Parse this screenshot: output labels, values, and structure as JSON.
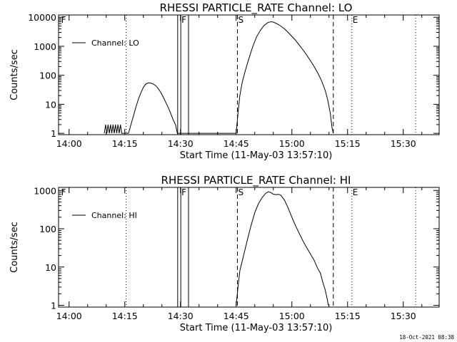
{
  "meta": {
    "timestamp": "18-Oct-2021 08:38"
  },
  "chart_data": [
    {
      "type": "line",
      "title": "RHESSI PARTICLE_RATE Channel: LO",
      "xlabel": "Start Time (11-May-03 13:57:10)",
      "ylabel": "Counts/sec",
      "yscale": "log",
      "ylim": [
        0.9,
        12000
      ],
      "xlim": [
        "13:57:10",
        "15:39:40"
      ],
      "xticks": [
        "14:00",
        "14:15",
        "14:30",
        "14:45",
        "15:00",
        "15:15",
        "15:30"
      ],
      "yticks": [
        "1",
        "10",
        "100",
        "1000",
        "10000"
      ],
      "legend": "top-left",
      "series": [
        {
          "name": "Channel: LO",
          "points": [
            [
              "14:09:30",
              1
            ],
            [
              "14:09:50",
              2
            ],
            [
              "14:10:10",
              1
            ],
            [
              "14:10:30",
              2
            ],
            [
              "14:10:50",
              1
            ],
            [
              "14:11:10",
              2
            ],
            [
              "14:11:30",
              1
            ],
            [
              "14:11:50",
              2
            ],
            [
              "14:12:10",
              1
            ],
            [
              "14:12:30",
              2
            ],
            [
              "14:12:50",
              1
            ],
            [
              "14:13:10",
              2
            ],
            [
              "14:13:30",
              1
            ],
            [
              "14:13:50",
              2
            ],
            [
              "14:14:10",
              1
            ],
            [
              "14:16:00",
              1
            ],
            [
              "14:16:40",
              2
            ],
            [
              "14:17:20",
              4
            ],
            [
              "14:18:00",
              8
            ],
            [
              "14:18:40",
              15
            ],
            [
              "14:19:20",
              25
            ],
            [
              "14:20:00",
              38
            ],
            [
              "14:20:40",
              50
            ],
            [
              "14:21:20",
              55
            ],
            [
              "14:22:00",
              54
            ],
            [
              "14:22:40",
              50
            ],
            [
              "14:23:20",
              44
            ],
            [
              "14:24:00",
              35
            ],
            [
              "14:24:40",
              26
            ],
            [
              "14:25:20",
              18
            ],
            [
              "14:26:00",
              12
            ],
            [
              "14:26:40",
              8
            ],
            [
              "14:27:20",
              5
            ],
            [
              "14:28:00",
              3
            ],
            [
              "14:28:40",
              2
            ],
            [
              "14:29:10",
              1
            ],
            [
              "14:45:00",
              1
            ],
            [
              "14:45:30",
              5
            ],
            [
              "14:46:00",
              20
            ],
            [
              "14:46:40",
              60
            ],
            [
              "14:47:30",
              150
            ],
            [
              "14:48:30",
              400
            ],
            [
              "14:49:30",
              1000
            ],
            [
              "14:50:30",
              2100
            ],
            [
              "14:51:30",
              3500
            ],
            [
              "14:52:30",
              5200
            ],
            [
              "14:53:30",
              6500
            ],
            [
              "14:54:20",
              7000
            ],
            [
              "14:55:00",
              6800
            ],
            [
              "14:56:00",
              6000
            ],
            [
              "14:57:00",
              5000
            ],
            [
              "14:58:00",
              4000
            ],
            [
              "14:59:00",
              3000
            ],
            [
              "15:00:00",
              2200
            ],
            [
              "15:01:00",
              1600
            ],
            [
              "15:02:00",
              1100
            ],
            [
              "15:03:00",
              750
            ],
            [
              "15:04:00",
              500
            ],
            [
              "15:05:00",
              320
            ],
            [
              "15:06:00",
              200
            ],
            [
              "15:07:00",
              120
            ],
            [
              "15:08:00",
              65
            ],
            [
              "15:09:00",
              30
            ],
            [
              "15:09:40",
              14
            ],
            [
              "15:10:20",
              5
            ],
            [
              "15:10:50",
              1.5
            ],
            [
              "15:11:10",
              1
            ]
          ]
        }
      ],
      "markers": [
        {
          "label": "F",
          "time": "13:57:40",
          "style": "none"
        },
        {
          "label": "F",
          "time": "14:30:05",
          "style": "none"
        },
        {
          "label": "S",
          "time": "14:45:20",
          "style": "dashed"
        },
        {
          "label": "E",
          "time": "15:16:10",
          "style": "dotted"
        }
      ],
      "vlines": [
        {
          "time": "14:15:20",
          "style": "dotted"
        },
        {
          "time": "14:29:15",
          "style": "solid"
        },
        {
          "time": "14:30:05",
          "style": "solid"
        },
        {
          "time": "14:32:10",
          "style": "solid"
        },
        {
          "time": "14:45:20",
          "style": "dashed"
        },
        {
          "time": "15:11:10",
          "style": "dashed"
        },
        {
          "time": "15:16:10",
          "style": "dotted"
        },
        {
          "time": "15:33:20",
          "style": "dotted"
        }
      ]
    },
    {
      "type": "line",
      "title": "RHESSI PARTICLE_RATE Channel: HI",
      "xlabel": "Start Time (11-May-03 13:57:10)",
      "ylabel": "Counts/sec",
      "yscale": "log",
      "ylim": [
        0.9,
        1200
      ],
      "xlim": [
        "13:57:10",
        "15:39:40"
      ],
      "xticks": [
        "14:00",
        "14:15",
        "14:30",
        "14:45",
        "15:00",
        "15:15",
        "15:30"
      ],
      "yticks": [
        "1",
        "10",
        "100",
        "1000"
      ],
      "legend": "top-left",
      "series": [
        {
          "name": "Channel: HI",
          "points": [
            [
              "14:45:00",
              1
            ],
            [
              "14:45:30",
              3
            ],
            [
              "14:46:00",
              8
            ],
            [
              "14:47:00",
              20
            ],
            [
              "14:48:00",
              50
            ],
            [
              "14:49:00",
              120
            ],
            [
              "14:50:00",
              260
            ],
            [
              "14:51:00",
              450
            ],
            [
              "14:52:00",
              650
            ],
            [
              "14:53:00",
              850
            ],
            [
              "14:53:40",
              920
            ],
            [
              "14:54:20",
              880
            ],
            [
              "14:55:00",
              800
            ],
            [
              "14:55:40",
              780
            ],
            [
              "14:56:20",
              790
            ],
            [
              "14:57:00",
              760
            ],
            [
              "14:58:00",
              560
            ],
            [
              "14:59:00",
              350
            ],
            [
              "15:00:00",
              200
            ],
            [
              "15:01:00",
              120
            ],
            [
              "15:02:00",
              75
            ],
            [
              "15:03:00",
              48
            ],
            [
              "15:04:00",
              32
            ],
            [
              "15:05:00",
              22
            ],
            [
              "15:06:00",
              15
            ],
            [
              "15:07:00",
              9
            ],
            [
              "15:07:40",
              7
            ],
            [
              "15:08:20",
              4
            ],
            [
              "15:09:00",
              2.5
            ],
            [
              "15:09:30",
              1.5
            ],
            [
              "15:09:50",
              1
            ]
          ]
        }
      ],
      "markers": [
        {
          "label": "F",
          "time": "13:57:40",
          "style": "none"
        },
        {
          "label": "F",
          "time": "14:30:05",
          "style": "none"
        },
        {
          "label": "S",
          "time": "14:45:20",
          "style": "dashed"
        },
        {
          "label": "E",
          "time": "15:16:10",
          "style": "dotted"
        }
      ],
      "vlines": [
        {
          "time": "14:15:20",
          "style": "dotted"
        },
        {
          "time": "14:29:15",
          "style": "solid"
        },
        {
          "time": "14:30:05",
          "style": "solid"
        },
        {
          "time": "14:32:10",
          "style": "solid"
        },
        {
          "time": "14:45:20",
          "style": "dashed"
        },
        {
          "time": "15:11:10",
          "style": "dashed"
        },
        {
          "time": "15:16:10",
          "style": "dotted"
        },
        {
          "time": "15:33:20",
          "style": "dotted"
        }
      ]
    }
  ]
}
